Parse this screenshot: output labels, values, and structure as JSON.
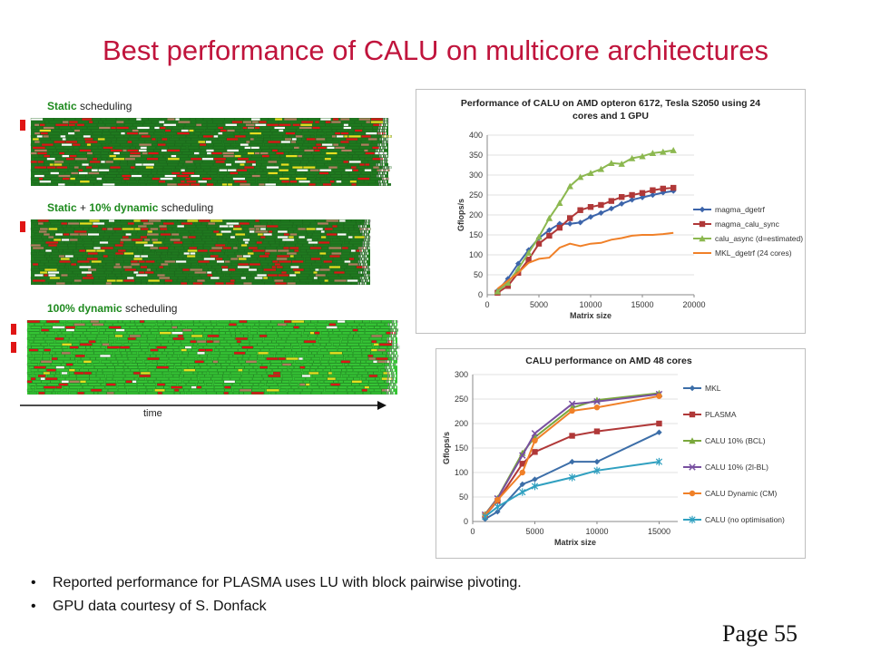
{
  "slide": {
    "title": "Best performance of CALU on multicore architectures",
    "page_label": "Page 55",
    "bullets": [
      "Reported performance for PLASMA uses LU with block pairwise pivoting.",
      "GPU data courtesy of S. Donfack"
    ]
  },
  "scheduling": {
    "static": {
      "prefix": "Static",
      "suffix": " scheduling"
    },
    "mixed": {
      "part1": "Static",
      "part2": " + ",
      "part3": "10% dynamic",
      "part4": " scheduling"
    },
    "dynamic": {
      "prefix": "100% dynamic",
      "suffix": " scheduling"
    },
    "time_label": "time"
  },
  "colors": {
    "title": "#c0143c",
    "dark_green": "#1f7a1f",
    "light_green": "#35c435",
    "red": "#e01515",
    "yellow": "#e8e020",
    "brown": "#b08060",
    "gray": "#909090"
  },
  "chart_data": [
    {
      "type": "line",
      "title": "Performance of CALU on AMD opteron 6172, Tesla S2050 using 24 cores and 1 GPU",
      "title_lines": [
        "Performance of CALU on AMD opteron 6172, Tesla S2050  using 24",
        "cores and 1 GPU"
      ],
      "xlabel": "Matrix size",
      "ylabel": "Gflops/s",
      "xlim": [
        0,
        20000
      ],
      "ylim": [
        0,
        400
      ],
      "xticks": [
        0,
        5000,
        10000,
        15000,
        20000
      ],
      "yticks": [
        0,
        50,
        100,
        150,
        200,
        250,
        300,
        350,
        400
      ],
      "legend_position": "right",
      "x": [
        1000,
        2000,
        3000,
        4000,
        5000,
        6000,
        7000,
        8000,
        9000,
        10000,
        11000,
        12000,
        13000,
        14000,
        15000,
        16000,
        17000,
        18000
      ],
      "series": [
        {
          "name": "magma_dgetrf",
          "color": "#3c64aa",
          "marker": "diamond",
          "values": [
            10,
            40,
            78,
            112,
            142,
            162,
            178,
            178,
            181,
            195,
            205,
            216,
            228,
            238,
            244,
            250,
            256,
            260
          ]
        },
        {
          "name": "magma_calu_sync",
          "color": "#b03838",
          "marker": "square",
          "values": [
            5,
            22,
            55,
            88,
            128,
            148,
            168,
            192,
            212,
            220,
            225,
            235,
            245,
            250,
            255,
            262,
            266,
            268
          ]
        },
        {
          "name": "calu_async (d=estimated)",
          "color": "#8cb850",
          "marker": "triangle",
          "values": [
            8,
            30,
            65,
            105,
            145,
            192,
            230,
            272,
            295,
            305,
            315,
            330,
            328,
            342,
            347,
            355,
            358,
            362
          ]
        },
        {
          "name": "MKL_dgetrf (24 cores)",
          "color": "#f08028",
          "marker": "none",
          "values": [
            15,
            35,
            55,
            80,
            90,
            93,
            118,
            128,
            122,
            128,
            130,
            138,
            142,
            148,
            150,
            150,
            152,
            155
          ]
        }
      ]
    },
    {
      "type": "line",
      "title": "CALU performance on AMD 48 cores",
      "xlabel": "Matrix size",
      "ylabel": "Gflops/s",
      "xlim": [
        0,
        16500
      ],
      "ylim": [
        0,
        300
      ],
      "xticks": [
        0,
        5000,
        10000,
        15000
      ],
      "yticks": [
        0,
        50,
        100,
        150,
        200,
        250,
        300
      ],
      "legend_position": "right",
      "x": [
        1000,
        2000,
        4000,
        5000,
        8000,
        10000,
        15000
      ],
      "series": [
        {
          "name": "MKL",
          "color": "#3c6ea8",
          "marker": "diamond",
          "values": [
            5,
            20,
            76,
            86,
            122,
            122,
            182
          ]
        },
        {
          "name": "PLASMA",
          "color": "#b03838",
          "marker": "square",
          "values": [
            12,
            42,
            118,
            142,
            175,
            184,
            200
          ]
        },
        {
          "name": "CALU 10% (BCL)",
          "color": "#7aa83c",
          "marker": "triangle",
          "values": [
            15,
            48,
            140,
            172,
            232,
            248,
            262
          ]
        },
        {
          "name": "CALU 10% (2l-BL)",
          "color": "#7850a0",
          "marker": "x",
          "values": [
            14,
            47,
            135,
            180,
            240,
            245,
            260
          ]
        },
        {
          "name": "CALU Dynamic (CM)",
          "color": "#f08028",
          "marker": "circle",
          "values": [
            13,
            44,
            100,
            165,
            226,
            233,
            256
          ]
        },
        {
          "name": "CALU (no optimisation)",
          "color": "#30a0c0",
          "marker": "star",
          "values": [
            10,
            30,
            60,
            72,
            90,
            104,
            122
          ]
        }
      ]
    }
  ]
}
